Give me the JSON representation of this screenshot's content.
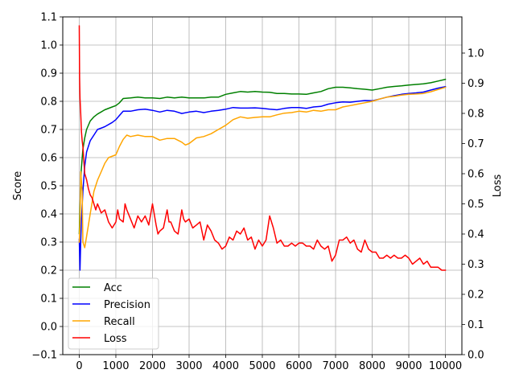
{
  "chart_data": {
    "type": "line",
    "xlabel": "",
    "ylabel": "Score",
    "y2label": "Loss",
    "grid": true,
    "legend_position": "lower-left",
    "x_ticks": [
      0,
      1000,
      2000,
      3000,
      4000,
      5000,
      6000,
      7000,
      8000,
      9000,
      10000
    ],
    "x_tick_labels": [
      "0",
      "1000",
      "2000",
      "3000",
      "4000",
      "5000",
      "6000",
      "7000",
      "8000",
      "9000",
      "10000"
    ],
    "xlim": [
      -450,
      10450
    ],
    "ylim": [
      -0.1,
      1.1
    ],
    "y_ticks": [
      -0.1,
      0.0,
      0.1,
      0.2,
      0.3,
      0.4,
      0.5,
      0.6,
      0.7,
      0.8,
      0.9,
      1.0,
      1.1
    ],
    "y_tick_labels": [
      "−0.1",
      "0.0",
      "0.1",
      "0.2",
      "0.3",
      "0.4",
      "0.5",
      "0.6",
      "0.7",
      "0.8",
      "0.9",
      "1.0",
      "1.1"
    ],
    "y2lim": [
      0.0,
      1.12
    ],
    "y2_ticks": [
      0.0,
      0.1,
      0.2,
      0.3,
      0.4,
      0.5,
      0.6,
      0.7,
      0.8,
      0.9,
      1.0
    ],
    "y2_tick_labels": [
      "0.0",
      "0.1",
      "0.2",
      "0.3",
      "0.4",
      "0.5",
      "0.6",
      "0.7",
      "0.8",
      "0.9",
      "1.0"
    ],
    "series": [
      {
        "name": "Acc",
        "axis": "left",
        "color": "#008000",
        "x": [
          0,
          20,
          50,
          100,
          150,
          200,
          300,
          400,
          500,
          700,
          900,
          1000,
          1100,
          1200,
          1400,
          1600,
          1800,
          2000,
          2200,
          2400,
          2600,
          2800,
          3000,
          3200,
          3400,
          3600,
          3800,
          4000,
          4200,
          4400,
          4600,
          4800,
          5000,
          5200,
          5400,
          5600,
          5800,
          6000,
          6200,
          6400,
          6600,
          6800,
          7000,
          7200,
          7400,
          7600,
          7800,
          8000,
          8200,
          8400,
          8600,
          8800,
          9000,
          9200,
          9400,
          9600,
          9800,
          10000
        ],
        "y": [
          0.33,
          0.42,
          0.55,
          0.63,
          0.67,
          0.7,
          0.73,
          0.745,
          0.755,
          0.77,
          0.78,
          0.785,
          0.795,
          0.81,
          0.812,
          0.815,
          0.812,
          0.812,
          0.81,
          0.815,
          0.812,
          0.815,
          0.812,
          0.812,
          0.812,
          0.815,
          0.815,
          0.825,
          0.83,
          0.835,
          0.833,
          0.835,
          0.833,
          0.832,
          0.828,
          0.828,
          0.826,
          0.826,
          0.825,
          0.83,
          0.835,
          0.845,
          0.85,
          0.85,
          0.848,
          0.845,
          0.843,
          0.84,
          0.845,
          0.85,
          0.853,
          0.855,
          0.858,
          0.86,
          0.862,
          0.866,
          0.872,
          0.878
        ]
      },
      {
        "name": "Precision",
        "axis": "left",
        "color": "#0000ff",
        "x": [
          0,
          20,
          40,
          60,
          100,
          150,
          200,
          300,
          400,
          500,
          700,
          900,
          1000,
          1100,
          1200,
          1400,
          1600,
          1800,
          2000,
          2200,
          2400,
          2600,
          2800,
          3000,
          3200,
          3400,
          3600,
          3800,
          4000,
          4200,
          4400,
          4600,
          4800,
          5000,
          5200,
          5400,
          5600,
          5800,
          6000,
          6200,
          6400,
          6600,
          6800,
          7000,
          7200,
          7400,
          7600,
          7800,
          8000,
          8200,
          8400,
          8600,
          8800,
          9000,
          9200,
          9400,
          9600,
          9800,
          10000
        ],
        "y": [
          0.31,
          0.2,
          0.3,
          0.38,
          0.48,
          0.57,
          0.62,
          0.66,
          0.68,
          0.7,
          0.71,
          0.725,
          0.735,
          0.75,
          0.765,
          0.765,
          0.77,
          0.772,
          0.768,
          0.762,
          0.768,
          0.765,
          0.757,
          0.762,
          0.765,
          0.76,
          0.765,
          0.768,
          0.772,
          0.778,
          0.776,
          0.776,
          0.777,
          0.775,
          0.772,
          0.77,
          0.775,
          0.778,
          0.778,
          0.775,
          0.78,
          0.782,
          0.79,
          0.795,
          0.798,
          0.797,
          0.8,
          0.803,
          0.802,
          0.808,
          0.815,
          0.82,
          0.825,
          0.828,
          0.83,
          0.833,
          0.84,
          0.847,
          0.852
        ]
      },
      {
        "name": "Recall",
        "axis": "left",
        "color": "#ffa500",
        "x": [
          0,
          20,
          40,
          80,
          100,
          150,
          200,
          300,
          400,
          500,
          600,
          700,
          800,
          1000,
          1100,
          1200,
          1300,
          1400,
          1600,
          1800,
          2000,
          2200,
          2400,
          2600,
          2800,
          2900,
          3000,
          3200,
          3400,
          3600,
          3800,
          4000,
          4200,
          4400,
          4600,
          4800,
          5000,
          5200,
          5400,
          5600,
          5800,
          6000,
          6200,
          6400,
          6600,
          6800,
          7000,
          7200,
          7400,
          7600,
          7800,
          8000,
          8200,
          8400,
          8600,
          8800,
          9000,
          9200,
          9400,
          9600,
          9800,
          10000
        ],
        "y": [
          0.3,
          0.37,
          0.55,
          0.48,
          0.3,
          0.28,
          0.32,
          0.4,
          0.48,
          0.52,
          0.55,
          0.58,
          0.6,
          0.61,
          0.64,
          0.665,
          0.68,
          0.675,
          0.68,
          0.675,
          0.675,
          0.662,
          0.668,
          0.668,
          0.655,
          0.645,
          0.65,
          0.67,
          0.675,
          0.685,
          0.7,
          0.715,
          0.735,
          0.745,
          0.74,
          0.743,
          0.745,
          0.745,
          0.752,
          0.758,
          0.76,
          0.765,
          0.762,
          0.768,
          0.765,
          0.77,
          0.77,
          0.78,
          0.785,
          0.79,
          0.795,
          0.8,
          0.808,
          0.815,
          0.818,
          0.822,
          0.825,
          0.826,
          0.828,
          0.834,
          0.842,
          0.85
        ]
      },
      {
        "name": "Loss",
        "axis": "right",
        "color": "#ff0000",
        "x": [
          0,
          10,
          20,
          40,
          60,
          80,
          100,
          150,
          200,
          250,
          300,
          350,
          400,
          450,
          500,
          600,
          700,
          800,
          900,
          1000,
          1050,
          1100,
          1200,
          1250,
          1300,
          1400,
          1500,
          1600,
          1700,
          1800,
          1900,
          2000,
          2100,
          2150,
          2200,
          2300,
          2400,
          2450,
          2500,
          2600,
          2700,
          2800,
          2850,
          2900,
          3000,
          3100,
          3200,
          3300,
          3400,
          3500,
          3600,
          3700,
          3800,
          3900,
          4000,
          4100,
          4200,
          4300,
          4400,
          4500,
          4600,
          4700,
          4800,
          4900,
          5000,
          5100,
          5200,
          5300,
          5400,
          5500,
          5600,
          5700,
          5800,
          5900,
          6000,
          6100,
          6200,
          6300,
          6400,
          6500,
          6600,
          6700,
          6800,
          6900,
          7000,
          7100,
          7200,
          7300,
          7400,
          7500,
          7600,
          7700,
          7800,
          7900,
          8000,
          8100,
          8200,
          8300,
          8400,
          8500,
          8600,
          8700,
          8800,
          8900,
          9000,
          9100,
          9200,
          9300,
          9400,
          9500,
          9600,
          9700,
          9800,
          9900,
          10000
        ],
        "y": [
          1.09,
          0.92,
          0.85,
          0.8,
          0.74,
          0.71,
          0.69,
          0.6,
          0.58,
          0.55,
          0.53,
          0.52,
          0.5,
          0.48,
          0.5,
          0.47,
          0.48,
          0.44,
          0.42,
          0.44,
          0.48,
          0.45,
          0.44,
          0.5,
          0.48,
          0.45,
          0.42,
          0.46,
          0.44,
          0.46,
          0.43,
          0.5,
          0.43,
          0.4,
          0.41,
          0.42,
          0.48,
          0.44,
          0.44,
          0.41,
          0.4,
          0.48,
          0.45,
          0.44,
          0.45,
          0.42,
          0.43,
          0.44,
          0.38,
          0.43,
          0.41,
          0.38,
          0.37,
          0.35,
          0.36,
          0.39,
          0.38,
          0.41,
          0.4,
          0.42,
          0.38,
          0.39,
          0.35,
          0.38,
          0.36,
          0.38,
          0.46,
          0.42,
          0.37,
          0.38,
          0.36,
          0.36,
          0.37,
          0.36,
          0.37,
          0.37,
          0.36,
          0.36,
          0.35,
          0.38,
          0.36,
          0.35,
          0.36,
          0.31,
          0.33,
          0.38,
          0.38,
          0.39,
          0.37,
          0.38,
          0.35,
          0.34,
          0.38,
          0.35,
          0.34,
          0.34,
          0.32,
          0.32,
          0.33,
          0.32,
          0.33,
          0.32,
          0.32,
          0.33,
          0.32,
          0.3,
          0.31,
          0.32,
          0.3,
          0.31,
          0.29,
          0.29,
          0.29,
          0.28,
          0.28
        ]
      }
    ]
  }
}
